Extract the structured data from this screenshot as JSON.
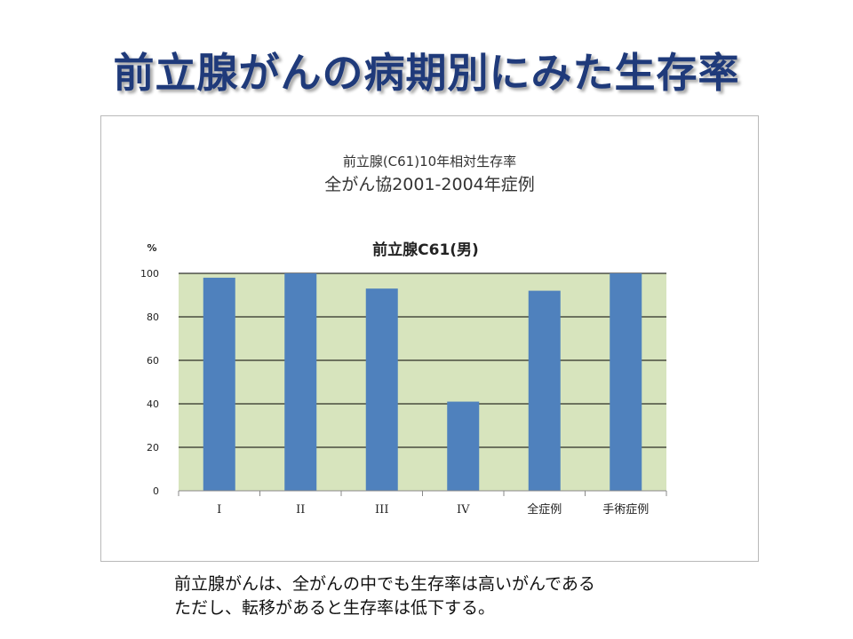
{
  "slide": {
    "title": "前立腺がんの病期別にみた生存率"
  },
  "chart_header": {
    "line1": "前立腺(C61)10年相対生存率",
    "line2": "全がん協2001-2004年症例"
  },
  "chart_data": {
    "type": "bar",
    "title": "前立腺C61(男)",
    "ylabel": "%",
    "xlabel": "",
    "categories": [
      "I",
      "II",
      "III",
      "IV",
      "全症例",
      "手術症例"
    ],
    "values": [
      98,
      100,
      93,
      41,
      92,
      100
    ],
    "ylim": [
      0,
      100
    ],
    "yticks": [
      0,
      20,
      40,
      60,
      80,
      100
    ],
    "grid": true,
    "legend": "none",
    "colors": {
      "bar": "#4f81bd",
      "plot_background": "#d7e4bd",
      "gridline": "#000000"
    }
  },
  "caption": {
    "line1": "前立腺がんは、全がんの中でも生存率は高いがんである",
    "line2": "ただし、転移があると生存率は低下する。"
  }
}
